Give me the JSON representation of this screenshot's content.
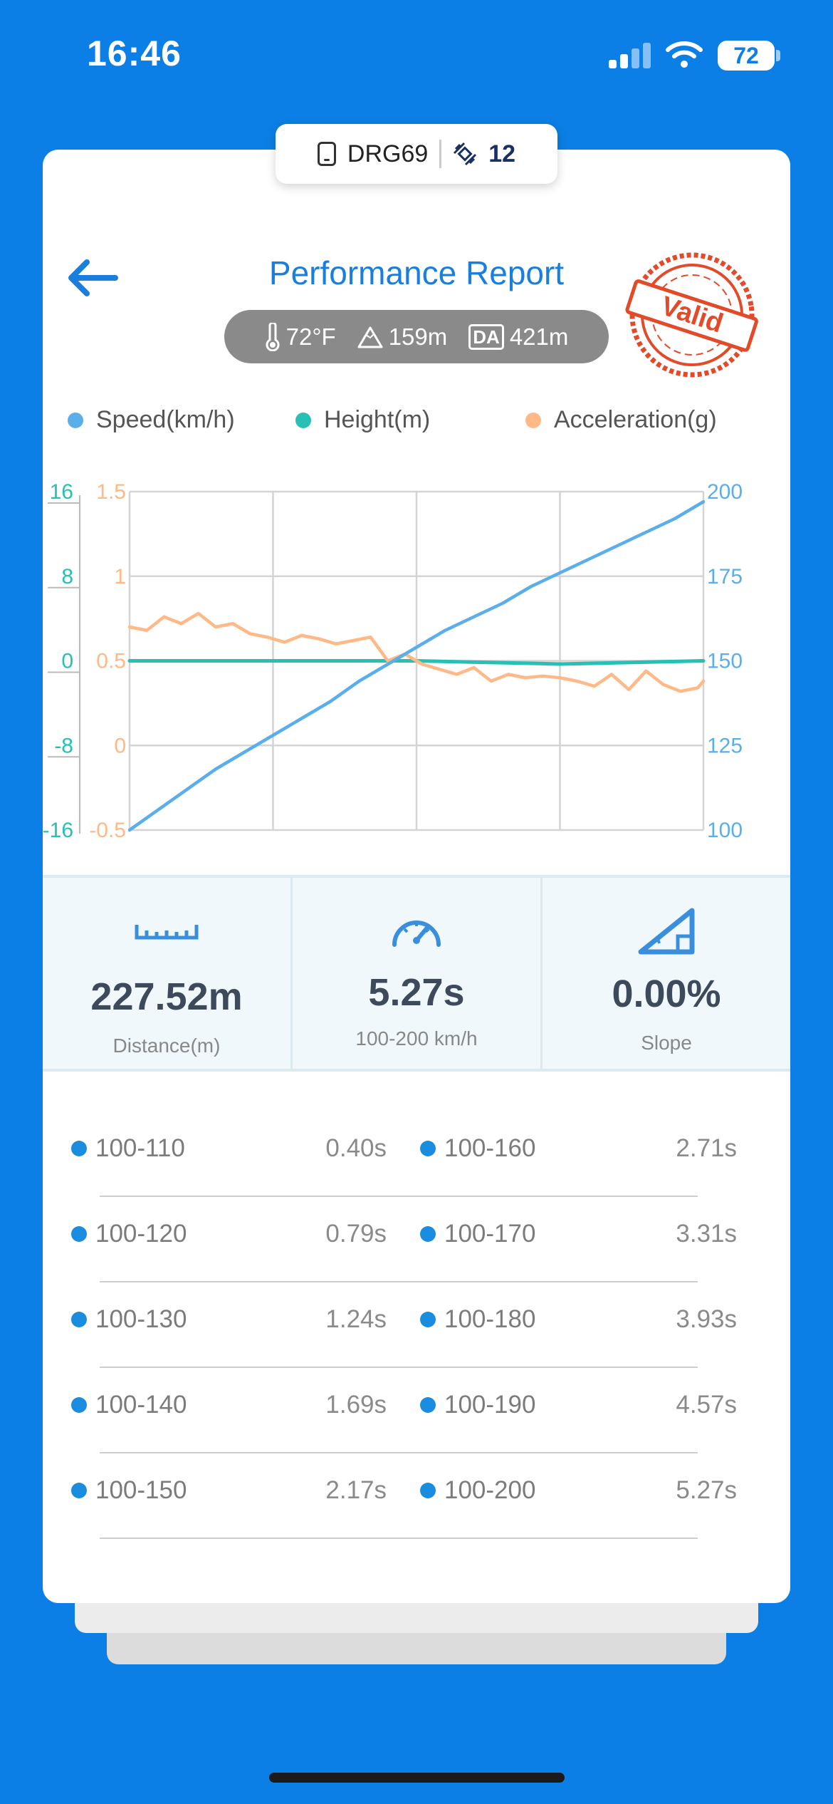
{
  "status_bar": {
    "time": "16:46",
    "battery": "72"
  },
  "device": {
    "name": "DRG69",
    "satellites": "12"
  },
  "header": {
    "title": "Performance Report",
    "stamp_text": "Valid"
  },
  "conditions": {
    "temperature": "72°F",
    "altitude": "159m",
    "da_label": "DA",
    "density_altitude": "421m"
  },
  "legend": [
    {
      "label": "Speed(km/h)",
      "color": "#5aaeea"
    },
    {
      "label": "Height(m)",
      "color": "#26c0b4"
    },
    {
      "label": "Acceleration(g)",
      "color": "#ffb987"
    }
  ],
  "chart_data": {
    "type": "line",
    "axes": {
      "height_ticks": [
        "16",
        "8",
        "0",
        "-8",
        "-16"
      ],
      "accel_ticks": [
        "1.5",
        "1",
        "0.5",
        "0",
        "-0.5"
      ],
      "speed_ticks": [
        "200",
        "175",
        "150",
        "125",
        "100"
      ],
      "height_range": [
        -16,
        16
      ],
      "accel_range": [
        -0.5,
        1.5
      ],
      "speed_range": [
        100,
        200
      ]
    },
    "x_range": [
      0,
      1
    ],
    "grid": true,
    "series": [
      {
        "name": "Speed(km/h)",
        "axis": "speed",
        "x": [
          0,
          0.05,
          0.1,
          0.15,
          0.2,
          0.25,
          0.3,
          0.35,
          0.4,
          0.45,
          0.5,
          0.55,
          0.6,
          0.65,
          0.7,
          0.75,
          0.8,
          0.85,
          0.9,
          0.95,
          1.0
        ],
        "values": [
          100,
          106,
          112,
          118,
          123,
          128,
          133,
          138,
          144,
          149,
          154,
          159,
          163,
          167,
          172,
          176,
          180,
          184,
          188,
          192,
          197
        ]
      },
      {
        "name": "Height(m)",
        "axis": "height",
        "x": [
          0,
          0.25,
          0.5,
          0.75,
          1.0
        ],
        "values": [
          0,
          0,
          0,
          -0.3,
          0
        ]
      },
      {
        "name": "Acceleration(g)",
        "axis": "accel",
        "x": [
          0,
          0.03,
          0.06,
          0.09,
          0.12,
          0.15,
          0.18,
          0.21,
          0.24,
          0.27,
          0.3,
          0.33,
          0.36,
          0.39,
          0.42,
          0.45,
          0.48,
          0.51,
          0.54,
          0.57,
          0.6,
          0.63,
          0.66,
          0.69,
          0.72,
          0.75,
          0.78,
          0.81,
          0.84,
          0.87,
          0.9,
          0.93,
          0.96,
          0.99,
          1.0
        ],
        "values": [
          0.7,
          0.68,
          0.76,
          0.72,
          0.78,
          0.7,
          0.72,
          0.66,
          0.64,
          0.61,
          0.65,
          0.63,
          0.6,
          0.62,
          0.64,
          0.5,
          0.54,
          0.48,
          0.45,
          0.42,
          0.46,
          0.38,
          0.42,
          0.4,
          0.41,
          0.4,
          0.38,
          0.35,
          0.42,
          0.33,
          0.44,
          0.36,
          0.32,
          0.34,
          0.38
        ]
      }
    ]
  },
  "stats": [
    {
      "value": "227.52m",
      "label": "Distance(m)",
      "icon": "ruler-icon"
    },
    {
      "value": "5.27s",
      "label": "100-200 km/h",
      "icon": "speedometer-icon"
    },
    {
      "value": "0.00%",
      "label": "Slope",
      "icon": "slope-icon"
    }
  ],
  "splits": [
    [
      {
        "range": "100-110",
        "time": "0.40s"
      },
      {
        "range": "100-160",
        "time": "2.71s"
      }
    ],
    [
      {
        "range": "100-120",
        "time": "0.79s"
      },
      {
        "range": "100-170",
        "time": "3.31s"
      }
    ],
    [
      {
        "range": "100-130",
        "time": "1.24s"
      },
      {
        "range": "100-180",
        "time": "3.93s"
      }
    ],
    [
      {
        "range": "100-140",
        "time": "1.69s"
      },
      {
        "range": "100-190",
        "time": "4.57s"
      }
    ],
    [
      {
        "range": "100-150",
        "time": "2.17s"
      },
      {
        "range": "100-200",
        "time": "5.27s"
      }
    ]
  ],
  "colors": {
    "background": "#0b7fe6",
    "accent": "#1a7fdc",
    "stamp": "#e24a2a"
  }
}
